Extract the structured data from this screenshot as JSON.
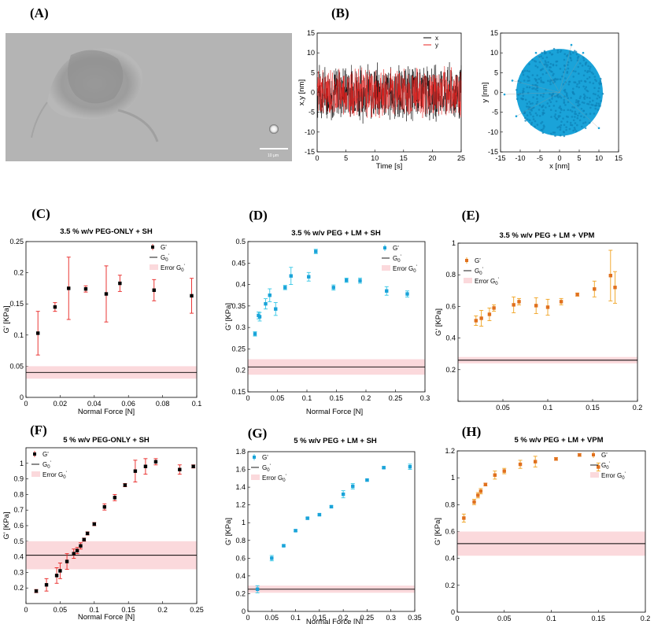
{
  "figure": {
    "colors": {
      "black": "#000000",
      "red": "#e8211f",
      "blue": "#1aa3d9",
      "orange": "#e0701e",
      "band": "#fbd9dc",
      "errRed": "#e8211f",
      "errBlue": "#33c7e6",
      "errOrange": "#f0a21e"
    },
    "panelA": {
      "letter": "(A)",
      "scale_label": "10 μm"
    },
    "panelB": {
      "letter": "(B)"
    }
  },
  "chart_data": [
    {
      "id": "B1",
      "type": "line",
      "title": "",
      "xlabel": "Time [s]",
      "ylabel": "x,y [nm]",
      "xlim": [
        0,
        25
      ],
      "ylim": [
        -15,
        15
      ],
      "xticks": [
        0,
        5,
        10,
        15,
        20,
        25
      ],
      "yticks": [
        -15,
        -10,
        -5,
        0,
        5,
        10,
        15
      ],
      "series": [
        {
          "name": "x",
          "color": "#000000",
          "approx_range": [
            -8,
            8
          ]
        },
        {
          "name": "y",
          "color": "#e8211f",
          "approx_range": [
            -7,
            7
          ]
        }
      ],
      "legend": [
        "x",
        "y"
      ]
    },
    {
      "id": "B2",
      "type": "scatter",
      "title": "",
      "xlabel": "x [nm]",
      "ylabel": "y [nm]",
      "xlim": [
        -15,
        15
      ],
      "ylim": [
        -15,
        15
      ],
      "xticks": [
        -15,
        -10,
        -5,
        0,
        5,
        10,
        15
      ],
      "yticks": [
        -15,
        -10,
        -5,
        0,
        5,
        10,
        15
      ],
      "cloud": {
        "center": [
          0,
          0
        ],
        "radius_x": 11,
        "radius_y": 11,
        "color": "#1aa3d9"
      }
    },
    {
      "id": "C",
      "letter": "(C)",
      "type": "scatter",
      "title": "3.5 % w/v PEG-ONLY + SH",
      "xlabel": "Normal Force [N]",
      "ylabel": "G' [KPa]",
      "xlim": [
        0,
        0.1
      ],
      "ylim": [
        0,
        0.25
      ],
      "xticks": [
        0,
        0.02,
        0.04,
        0.06,
        0.08,
        0.1
      ],
      "xtick_labels": [
        "0",
        "0.02",
        "0.04",
        "0.06",
        "0.08",
        "0.1"
      ],
      "yticks": [
        0,
        0.05,
        0.1,
        0.15,
        0.2,
        0.25
      ],
      "ytick_labels": [
        "0",
        "0.05",
        "0.1",
        "0.15",
        "0.2",
        "0.25"
      ],
      "marker_color": "#000000",
      "err_color": "#e8211f",
      "x": [
        0.007,
        0.017,
        0.025,
        0.035,
        0.047,
        0.055,
        0.075,
        0.097
      ],
      "y": [
        0.103,
        0.145,
        0.175,
        0.174,
        0.166,
        0.183,
        0.172,
        0.163
      ],
      "err": [
        0.035,
        0.007,
        0.05,
        0.005,
        0.045,
        0.013,
        0.017,
        0.028
      ],
      "G0": 0.04,
      "G0_err": 0.01,
      "legend": [
        "G'",
        "G0'",
        "Error G0'"
      ]
    },
    {
      "id": "D",
      "letter": "(D)",
      "type": "scatter",
      "title": "3.5 % w/v PEG + LM + SH",
      "xlabel": "Normal Force [N]",
      "ylabel": "G' [KPa]",
      "xlim": [
        0,
        0.3
      ],
      "ylim": [
        0.15,
        0.5
      ],
      "xticks": [
        0,
        0.05,
        0.1,
        0.15,
        0.2,
        0.25,
        0.3
      ],
      "xtick_labels": [
        "0",
        "0.05",
        "0.1",
        "0.15",
        "0.2",
        "0.25",
        "0.3"
      ],
      "yticks": [
        0.15,
        0.2,
        0.25,
        0.3,
        0.35,
        0.4,
        0.45,
        0.5
      ],
      "ytick_labels": [
        "0.15",
        "0.2",
        "0.25",
        "0.3",
        "0.35",
        "0.4",
        "0.45",
        "0.5"
      ],
      "marker_color": "#1aa3d9",
      "err_color": "#33c7e6",
      "x": [
        0.012,
        0.018,
        0.02,
        0.03,
        0.037,
        0.047,
        0.063,
        0.073,
        0.103,
        0.115,
        0.145,
        0.167,
        0.19,
        0.235,
        0.27
      ],
      "y": [
        0.285,
        0.328,
        0.325,
        0.355,
        0.375,
        0.343,
        0.393,
        0.42,
        0.418,
        0.477,
        0.393,
        0.41,
        0.409,
        0.385,
        0.378
      ],
      "err": [
        0.005,
        0.008,
        0.01,
        0.012,
        0.015,
        0.015,
        0.005,
        0.02,
        0.01,
        0.005,
        0.006,
        0.005,
        0.006,
        0.01,
        0.007
      ],
      "G0": 0.208,
      "G0_err": 0.018,
      "legend": [
        "G'",
        "G0'",
        "Error G0'"
      ]
    },
    {
      "id": "E",
      "letter": "(E)",
      "type": "scatter",
      "title": "3.5 % w/v PEG + LM + VPM",
      "xlabel": "",
      "ylabel": "G' [KPa]",
      "xlim": [
        0,
        0.2
      ],
      "ylim": [
        0,
        1
      ],
      "xticks": [
        0,
        0.05,
        0.1,
        0.15,
        0.2
      ],
      "xtick_labels": [
        "",
        "0.05",
        "0.1",
        "0.15",
        "0.2"
      ],
      "yticks": [
        0,
        0.2,
        0.4,
        0.6,
        0.8,
        1
      ],
      "ytick_labels": [
        "",
        "0.2",
        "0.4",
        "0.6",
        "0.8",
        "1"
      ],
      "marker_color": "#e0701e",
      "err_color": "#f0a21e",
      "x": [
        0.02,
        0.026,
        0.035,
        0.04,
        0.062,
        0.068,
        0.087,
        0.1,
        0.115,
        0.133,
        0.152,
        0.17,
        0.175
      ],
      "y": [
        0.51,
        0.525,
        0.55,
        0.59,
        0.61,
        0.63,
        0.605,
        0.595,
        0.63,
        0.675,
        0.71,
        0.795,
        0.72
      ],
      "err": [
        0.03,
        0.05,
        0.04,
        0.02,
        0.05,
        0.02,
        0.05,
        0.05,
        0.02,
        0.01,
        0.05,
        0.16,
        0.1
      ],
      "G0": 0.26,
      "G0_err": 0.02,
      "legend": [
        "G'",
        "G0'",
        "Error G0'"
      ]
    },
    {
      "id": "F",
      "letter": "(F)",
      "type": "scatter",
      "title": "5 % w/v PEG-ONLY + SH",
      "xlabel": "Normal Force [N]",
      "ylabel": "G' [KPa]",
      "xlim": [
        0,
        0.25
      ],
      "ylim": [
        0.1,
        1.1
      ],
      "xticks": [
        0,
        0.05,
        0.1,
        0.15,
        0.2,
        0.25
      ],
      "xtick_labels": [
        "0",
        "0.05",
        "0.1",
        "0.15",
        "0.2",
        "0.25"
      ],
      "yticks": [
        0.2,
        0.3,
        0.4,
        0.5,
        0.6,
        0.7,
        0.8,
        0.9,
        1
      ],
      "ytick_labels": [
        "0.2",
        "0.3",
        "0.4",
        "0.5",
        "0.6",
        "0.7",
        "0.8",
        "0.9",
        "1"
      ],
      "marker_color": "#000000",
      "err_color": "#e8211f",
      "x": [
        0.015,
        0.03,
        0.045,
        0.05,
        0.06,
        0.07,
        0.075,
        0.08,
        0.085,
        0.09,
        0.1,
        0.115,
        0.13,
        0.145,
        0.16,
        0.175,
        0.19,
        0.225,
        0.245
      ],
      "y": [
        0.18,
        0.22,
        0.28,
        0.31,
        0.37,
        0.42,
        0.44,
        0.47,
        0.51,
        0.55,
        0.61,
        0.72,
        0.78,
        0.86,
        0.95,
        0.98,
        1.01,
        0.96,
        0.98
      ],
      "err": [
        0.01,
        0.04,
        0.05,
        0.05,
        0.05,
        0.03,
        0.02,
        0.02,
        0.01,
        0.01,
        0.01,
        0.02,
        0.02,
        0.01,
        0.07,
        0.05,
        0.02,
        0.03,
        0.01
      ],
      "G0": 0.41,
      "G0_err": 0.09,
      "legend": [
        "G'",
        "G0'",
        "Error G0'"
      ]
    },
    {
      "id": "G",
      "letter": "(G)",
      "type": "scatter",
      "title": "5 % w/v PEG + LM + SH",
      "xlabel": "Normal Force [N]",
      "ylabel": "G' [KPa]",
      "xlim": [
        0,
        0.35
      ],
      "ylim": [
        0,
        1.8
      ],
      "xticks": [
        0,
        0.05,
        0.1,
        0.15,
        0.2,
        0.25,
        0.3,
        0.35
      ],
      "xtick_labels": [
        "0",
        "0.05",
        "0.1",
        "0.15",
        "0.2",
        "0.25",
        "0.3",
        "0.35"
      ],
      "yticks": [
        0,
        0.2,
        0.4,
        0.6,
        0.8,
        1,
        1.2,
        1.4,
        1.6,
        1.8
      ],
      "ytick_labels": [
        "0",
        "0.2",
        "0.4",
        "0.6",
        "0.8",
        "1",
        "1.2",
        "1.4",
        "1.6",
        "1.8"
      ],
      "marker_color": "#1aa3d9",
      "err_color": "#33c7e6",
      "x": [
        0.02,
        0.05,
        0.075,
        0.1,
        0.125,
        0.15,
        0.175,
        0.2,
        0.22,
        0.25,
        0.285,
        0.34
      ],
      "y": [
        0.25,
        0.6,
        0.74,
        0.91,
        1.05,
        1.09,
        1.18,
        1.32,
        1.41,
        1.48,
        1.62,
        1.63
      ],
      "err": [
        0.04,
        0.03,
        0.01,
        0.01,
        0.01,
        0.01,
        0.01,
        0.04,
        0.03,
        0.01,
        0.01,
        0.03
      ],
      "G0": 0.25,
      "G0_err": 0.04,
      "legend": [
        "G'",
        "G0'",
        "Error G0'"
      ]
    },
    {
      "id": "H",
      "letter": "(H)",
      "type": "scatter",
      "title": "5 % w/v PEG + LM + VPM",
      "xlabel": "",
      "ylabel": "G' [KPa]",
      "xlim": [
        0,
        0.2
      ],
      "ylim": [
        0,
        1.2
      ],
      "xticks": [
        0,
        0.05,
        0.1,
        0.15,
        0.2
      ],
      "xtick_labels": [
        "0",
        "0.05",
        "0.1",
        "0.15",
        "0.2"
      ],
      "yticks": [
        0,
        0.2,
        0.4,
        0.6,
        0.8,
        1,
        1.2
      ],
      "ytick_labels": [
        "0",
        "0.2",
        "0.4",
        "0.6",
        "0.8",
        "1",
        "1.2"
      ],
      "marker_color": "#e0701e",
      "err_color": "#f0a21e",
      "x": [
        0.007,
        0.018,
        0.022,
        0.025,
        0.03,
        0.04,
        0.05,
        0.067,
        0.083,
        0.105,
        0.13,
        0.15
      ],
      "y": [
        0.7,
        0.82,
        0.87,
        0.9,
        0.95,
        1.02,
        1.05,
        1.1,
        1.12,
        1.14,
        1.17,
        1.08
      ],
      "err": [
        0.03,
        0.02,
        0.02,
        0.02,
        0.01,
        0.03,
        0.02,
        0.03,
        0.04,
        0.01,
        0.01,
        0.03
      ],
      "G0": 0.51,
      "G0_err": 0.09,
      "legend": [
        "G'",
        "G0'",
        "Error G0'"
      ]
    }
  ]
}
